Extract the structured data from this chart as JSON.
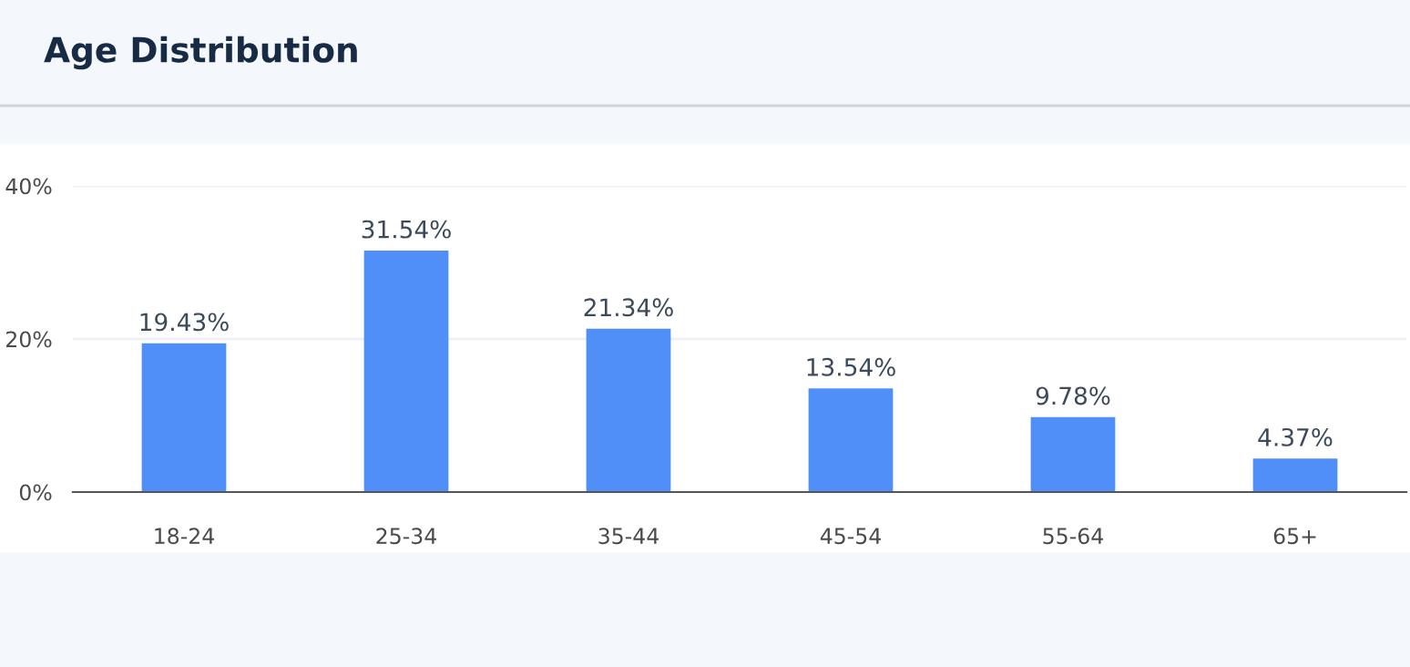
{
  "chart_data": {
    "type": "bar",
    "title": "Age Distribution",
    "categories": [
      "18-24",
      "25-34",
      "35-44",
      "45-54",
      "55-64",
      "65+"
    ],
    "values": [
      19.43,
      31.54,
      21.34,
      13.54,
      9.78,
      4.37
    ],
    "value_labels": [
      "19.43%",
      "31.54%",
      "21.34%",
      "13.54%",
      "9.78%",
      "4.37%"
    ],
    "color": "#4f8ff7",
    "ylim": [
      0,
      40
    ],
    "yticks": [
      {
        "value": 0,
        "label": "0%"
      },
      {
        "value": 20,
        "label": "20%"
      },
      {
        "value": 40,
        "label": "40%"
      }
    ],
    "grid": "y",
    "legend": false
  }
}
